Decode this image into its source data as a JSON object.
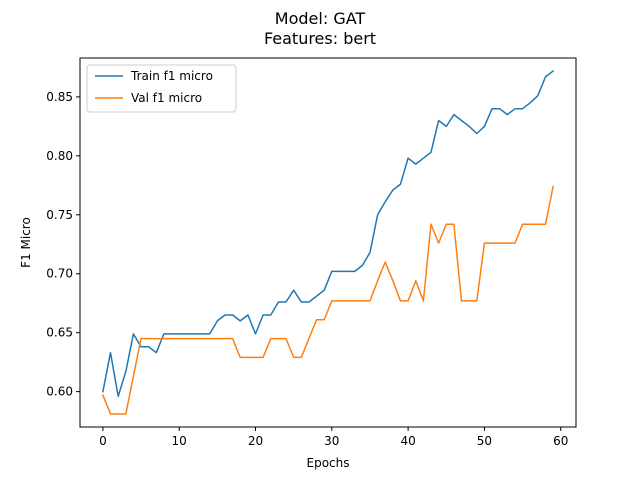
{
  "chart_data": {
    "type": "line",
    "title": "Model: GAT",
    "subtitle": "Features: bert",
    "xlabel": "Epochs",
    "ylabel": "F1 Micro",
    "xlim": [
      -3,
      62
    ],
    "ylim": [
      0.57,
      0.883
    ],
    "xticks": [
      0,
      10,
      20,
      30,
      40,
      50,
      60
    ],
    "yticks": [
      0.6,
      0.65,
      0.7,
      0.75,
      0.8,
      0.85
    ],
    "ytick_labels": [
      "0.60",
      "0.65",
      "0.70",
      "0.75",
      "0.80",
      "0.85"
    ],
    "legend_position": "upper-left",
    "grid": false,
    "series": [
      {
        "name": "Train f1 micro",
        "color": "#1f77b4",
        "x": [
          0,
          1,
          2,
          3,
          4,
          5,
          6,
          7,
          8,
          9,
          10,
          11,
          12,
          13,
          14,
          15,
          16,
          17,
          18,
          19,
          20,
          21,
          22,
          23,
          24,
          25,
          26,
          27,
          28,
          29,
          30,
          31,
          32,
          33,
          34,
          35,
          36,
          37,
          38,
          39,
          40,
          41,
          42,
          43,
          44,
          45,
          46,
          47,
          48,
          49,
          50,
          51,
          52,
          53,
          54,
          55,
          56,
          57,
          58,
          59
        ],
        "values": [
          0.6,
          0.633,
          0.596,
          0.617,
          0.649,
          0.638,
          0.638,
          0.633,
          0.649,
          0.649,
          0.649,
          0.649,
          0.649,
          0.649,
          0.649,
          0.66,
          0.665,
          0.665,
          0.66,
          0.665,
          0.649,
          0.665,
          0.665,
          0.676,
          0.676,
          0.686,
          0.676,
          0.676,
          0.681,
          0.686,
          0.702,
          0.702,
          0.702,
          0.702,
          0.707,
          0.718,
          0.75,
          0.761,
          0.771,
          0.776,
          0.798,
          0.793,
          0.798,
          0.803,
          0.83,
          0.825,
          0.835,
          0.83,
          0.825,
          0.819,
          0.825,
          0.84,
          0.84,
          0.835,
          0.84,
          0.84,
          0.845,
          0.851,
          0.867,
          0.872
        ]
      },
      {
        "name": "Val f1 micro",
        "color": "#ff7f0e",
        "x": [
          0,
          1,
          2,
          3,
          4,
          5,
          6,
          7,
          8,
          9,
          10,
          11,
          12,
          13,
          14,
          15,
          16,
          17,
          18,
          19,
          20,
          21,
          22,
          23,
          24,
          25,
          26,
          27,
          28,
          29,
          30,
          31,
          32,
          33,
          34,
          35,
          36,
          37,
          38,
          39,
          40,
          41,
          42,
          43,
          44,
          45,
          46,
          47,
          48,
          49,
          50,
          51,
          52,
          53,
          54,
          55,
          56,
          57,
          58,
          59
        ],
        "values": [
          0.597,
          0.581,
          0.581,
          0.581,
          0.613,
          0.645,
          0.645,
          0.645,
          0.645,
          0.645,
          0.645,
          0.645,
          0.645,
          0.645,
          0.645,
          0.645,
          0.645,
          0.645,
          0.629,
          0.629,
          0.629,
          0.629,
          0.645,
          0.645,
          0.645,
          0.629,
          0.629,
          0.645,
          0.661,
          0.661,
          0.677,
          0.677,
          0.677,
          0.677,
          0.677,
          0.677,
          0.694,
          0.71,
          0.694,
          0.677,
          0.677,
          0.694,
          0.677,
          0.742,
          0.726,
          0.742,
          0.742,
          0.677,
          0.677,
          0.677,
          0.726,
          0.726,
          0.726,
          0.726,
          0.726,
          0.742,
          0.742,
          0.742,
          0.742,
          0.774
        ]
      }
    ]
  }
}
